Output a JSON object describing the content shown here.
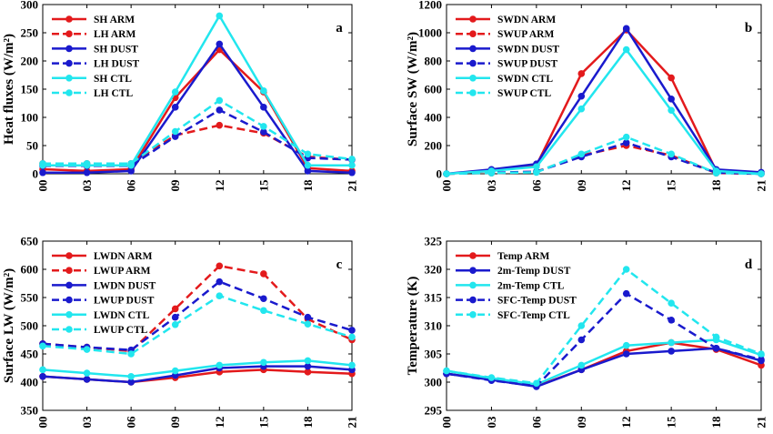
{
  "chart_data": [
    {
      "type": "line",
      "panel_label": "a",
      "ylabel": "Heat fluxes (W/m²)",
      "x": [
        "00",
        "03",
        "06",
        "09",
        "12",
        "15",
        "18",
        "21"
      ],
      "ylim": [
        0,
        300
      ],
      "yticks": [
        0,
        50,
        100,
        150,
        200,
        250,
        300
      ],
      "legend_position": "top-left",
      "series": [
        {
          "name": "SH ARM",
          "color": "#e31a1c",
          "dash": "solid",
          "values": [
            8,
            5,
            8,
            135,
            220,
            145,
            10,
            5
          ]
        },
        {
          "name": "LH ARM",
          "color": "#e31a1c",
          "dash": "dashed",
          "values": [
            18,
            18,
            18,
            68,
            86,
            72,
            30,
            25
          ]
        },
        {
          "name": "SH DUST",
          "color": "#1a1acd",
          "dash": "solid",
          "values": [
            2,
            2,
            5,
            118,
            230,
            118,
            5,
            2
          ]
        },
        {
          "name": "LH DUST",
          "color": "#1a1acd",
          "dash": "dashed",
          "values": [
            14,
            14,
            14,
            66,
            113,
            74,
            28,
            25
          ]
        },
        {
          "name": "SH CTL",
          "color": "#22e6ee",
          "dash": "solid",
          "values": [
            15,
            15,
            15,
            145,
            280,
            147,
            15,
            15
          ]
        },
        {
          "name": "LH CTL",
          "color": "#22e6ee",
          "dash": "dashed",
          "values": [
            18,
            18,
            18,
            75,
            130,
            84,
            35,
            26
          ]
        }
      ]
    },
    {
      "type": "line",
      "panel_label": "b",
      "ylabel": "Surface SW (W/m²)",
      "x": [
        "00",
        "03",
        "06",
        "09",
        "12",
        "15",
        "18",
        "21"
      ],
      "ylim": [
        0,
        1200
      ],
      "yticks": [
        0,
        200,
        400,
        600,
        800,
        1000,
        1200
      ],
      "legend_position": "top-left",
      "series": [
        {
          "name": "SWDN ARM",
          "color": "#e31a1c",
          "dash": "solid",
          "values": [
            0,
            20,
            60,
            710,
            1020,
            680,
            20,
            0
          ]
        },
        {
          "name": "SWUP ARM",
          "color": "#e31a1c",
          "dash": "dashed",
          "values": [
            0,
            5,
            15,
            130,
            200,
            130,
            5,
            0
          ]
        },
        {
          "name": "SWDN DUST",
          "color": "#1a1acd",
          "dash": "solid",
          "values": [
            0,
            30,
            70,
            550,
            1030,
            530,
            30,
            10
          ]
        },
        {
          "name": "SWUP DUST",
          "color": "#1a1acd",
          "dash": "dashed",
          "values": [
            0,
            8,
            15,
            120,
            220,
            120,
            8,
            0
          ]
        },
        {
          "name": "SWDN CTL",
          "color": "#22e6ee",
          "dash": "solid",
          "values": [
            0,
            20,
            50,
            460,
            880,
            450,
            20,
            0
          ]
        },
        {
          "name": "SWUP CTL",
          "color": "#22e6ee",
          "dash": "dashed",
          "values": [
            0,
            5,
            10,
            140,
            260,
            140,
            5,
            0
          ]
        }
      ]
    },
    {
      "type": "line",
      "panel_label": "c",
      "ylabel": "Surface LW (W/m²)",
      "x": [
        "00",
        "03",
        "06",
        "09",
        "12",
        "15",
        "18",
        "21"
      ],
      "ylim": [
        350,
        650
      ],
      "yticks": [
        350,
        400,
        450,
        500,
        550,
        600,
        650
      ],
      "legend_position": "top-left",
      "series": [
        {
          "name": "LWDN ARM",
          "color": "#e31a1c",
          "dash": "solid",
          "values": [
            410,
            405,
            400,
            408,
            418,
            422,
            418,
            415
          ]
        },
        {
          "name": "LWUP ARM",
          "color": "#e31a1c",
          "dash": "dashed",
          "values": [
            468,
            462,
            455,
            530,
            606,
            592,
            512,
            475
          ]
        },
        {
          "name": "LWDN DUST",
          "color": "#1a1acd",
          "dash": "solid",
          "values": [
            410,
            405,
            400,
            412,
            425,
            428,
            428,
            422
          ]
        },
        {
          "name": "LWUP DUST",
          "color": "#1a1acd",
          "dash": "dashed",
          "values": [
            468,
            462,
            457,
            515,
            578,
            548,
            515,
            492
          ]
        },
        {
          "name": "LWDN CTL",
          "color": "#22e6ee",
          "dash": "solid",
          "values": [
            422,
            416,
            410,
            420,
            430,
            435,
            438,
            430
          ]
        },
        {
          "name": "LWUP CTL",
          "color": "#22e6ee",
          "dash": "dashed",
          "values": [
            464,
            458,
            450,
            502,
            553,
            527,
            503,
            480
          ]
        }
      ]
    },
    {
      "type": "line",
      "panel_label": "d",
      "ylabel": "Temperature (K)",
      "x": [
        "00",
        "03",
        "06",
        "09",
        "12",
        "15",
        "18",
        "21"
      ],
      "ylim": [
        295,
        325
      ],
      "yticks": [
        295,
        300,
        305,
        310,
        315,
        320,
        325
      ],
      "legend_position": "top-left",
      "series": [
        {
          "name": "Temp ARM",
          "color": "#e31a1c",
          "dash": "solid",
          "values": [
            301.5,
            300.5,
            299.3,
            302.2,
            305.5,
            307.0,
            305.8,
            303.0
          ]
        },
        {
          "name": "2m-Temp DUST",
          "color": "#1a1acd",
          "dash": "solid",
          "values": [
            301.5,
            300.4,
            299.2,
            302.2,
            305.0,
            305.5,
            306.0,
            303.8
          ]
        },
        {
          "name": "2m-Temp CTL",
          "color": "#22e6ee",
          "dash": "solid",
          "values": [
            302.0,
            300.7,
            299.6,
            303.0,
            306.5,
            307.0,
            307.5,
            304.8
          ]
        },
        {
          "name": "SFC-Temp DUST",
          "color": "#1a1acd",
          "dash": "dashed",
          "values": [
            301.5,
            300.3,
            299.3,
            307.5,
            315.7,
            311.0,
            306.0,
            304.0
          ]
        },
        {
          "name": "SFC-Temp CTL",
          "color": "#22e6ee",
          "dash": "dashed",
          "values": [
            302.0,
            300.8,
            299.8,
            310.0,
            320.0,
            314.0,
            308.0,
            305.0
          ]
        }
      ]
    }
  ]
}
